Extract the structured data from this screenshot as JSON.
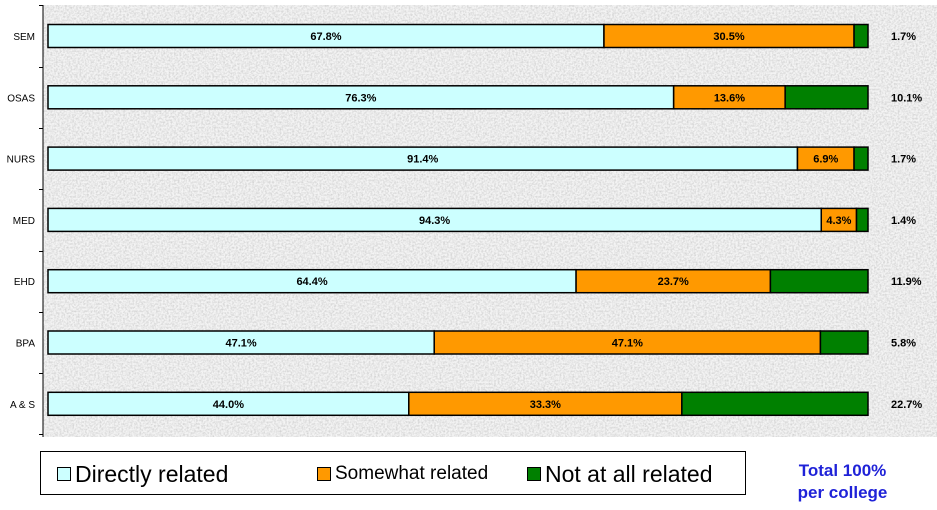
{
  "chart_data": {
    "type": "bar",
    "orientation": "horizontal",
    "stacked": true,
    "categories": [
      "SEM",
      "OSAS",
      "NURS",
      "MED",
      "EHD",
      "BPA",
      "A & S"
    ],
    "series": [
      {
        "name": "Directly related",
        "color": "#ccffff",
        "values": [
          67.8,
          76.3,
          91.4,
          94.3,
          64.4,
          47.1,
          44.0
        ],
        "labels": [
          "67.8%",
          "76.3%",
          "91.4%",
          "94.3%",
          "64.4%",
          "47.1%",
          "44.0%"
        ]
      },
      {
        "name": "Somewhat related",
        "color": "#ff9900",
        "values": [
          30.5,
          13.6,
          6.9,
          4.3,
          23.7,
          47.1,
          33.3
        ],
        "labels": [
          "30.5%",
          "13.6%",
          "6.9%",
          "4.3%",
          "23.7%",
          "47.1%",
          "33.3%"
        ]
      },
      {
        "name": "Not at all related",
        "color": "#008000",
        "values": [
          1.7,
          10.1,
          1.7,
          1.4,
          11.9,
          5.8,
          22.7
        ],
        "labels": [
          "1.7%",
          "10.1%",
          "1.7%",
          "1.4%",
          "11.9%",
          "5.8%",
          "22.7%"
        ]
      }
    ],
    "xlim": [
      0,
      100
    ],
    "grid": false,
    "legend_position": "bottom"
  },
  "note": {
    "line1": "Total 100%",
    "line2": "per college"
  }
}
